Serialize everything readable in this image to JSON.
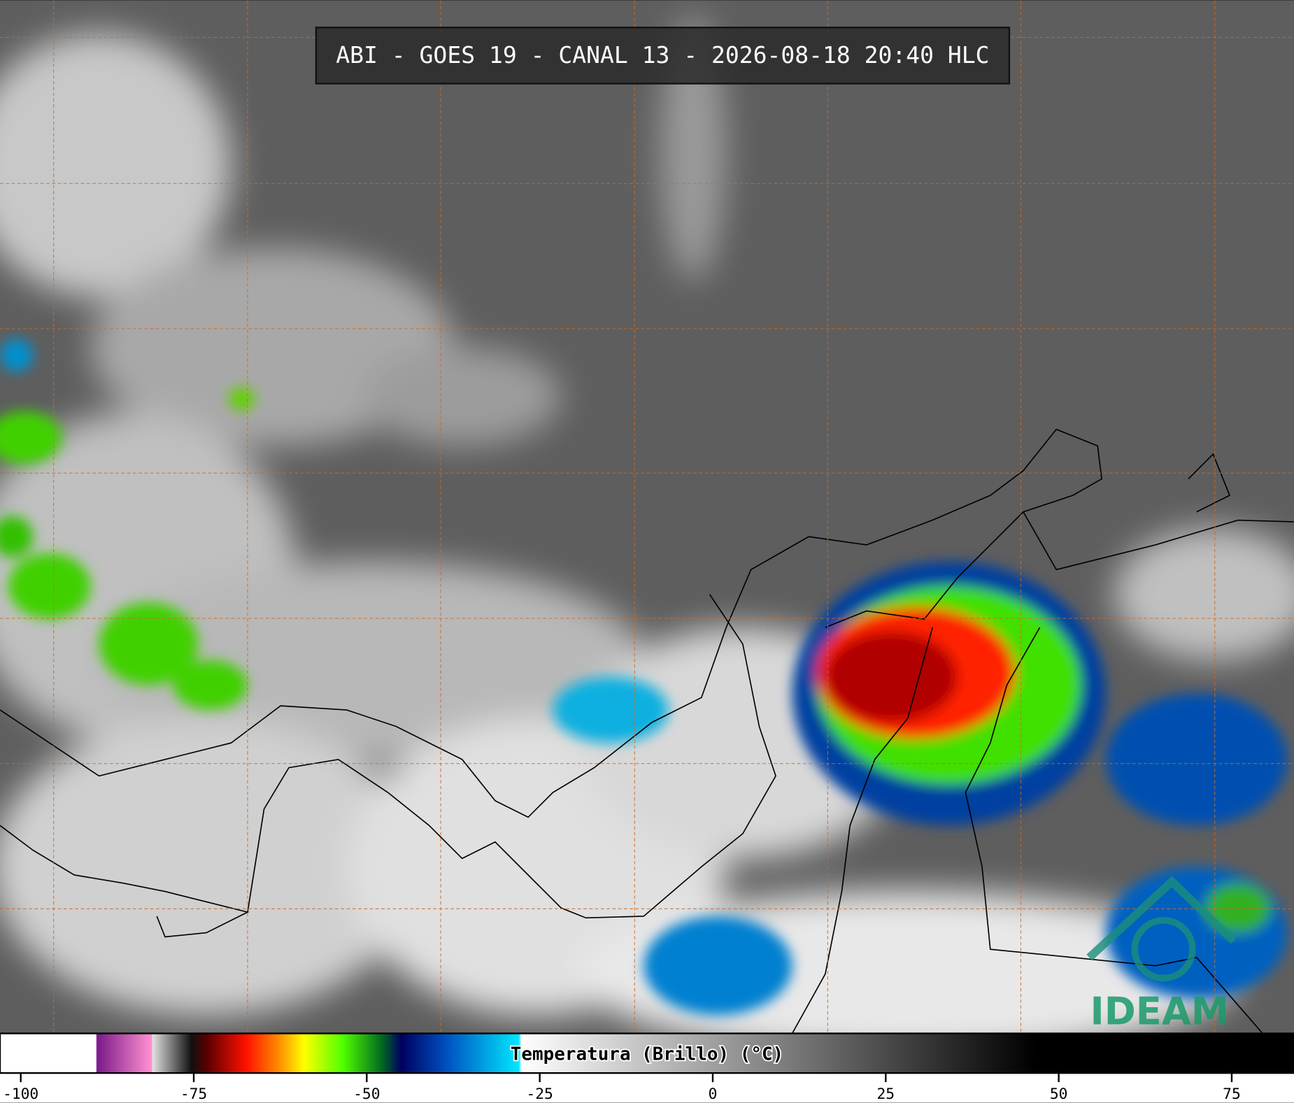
{
  "title": "ABI - GOES 19 - CANAL 13 - 2026-08-18 20:40 HLC",
  "colorbar": {
    "label": "Temperatura (Brillo) (°C)",
    "lim": [
      -103,
      84
    ],
    "ticks": [
      -100,
      -75,
      -50,
      -25,
      0,
      25,
      50,
      75
    ]
  },
  "logo": "IDEAM"
}
